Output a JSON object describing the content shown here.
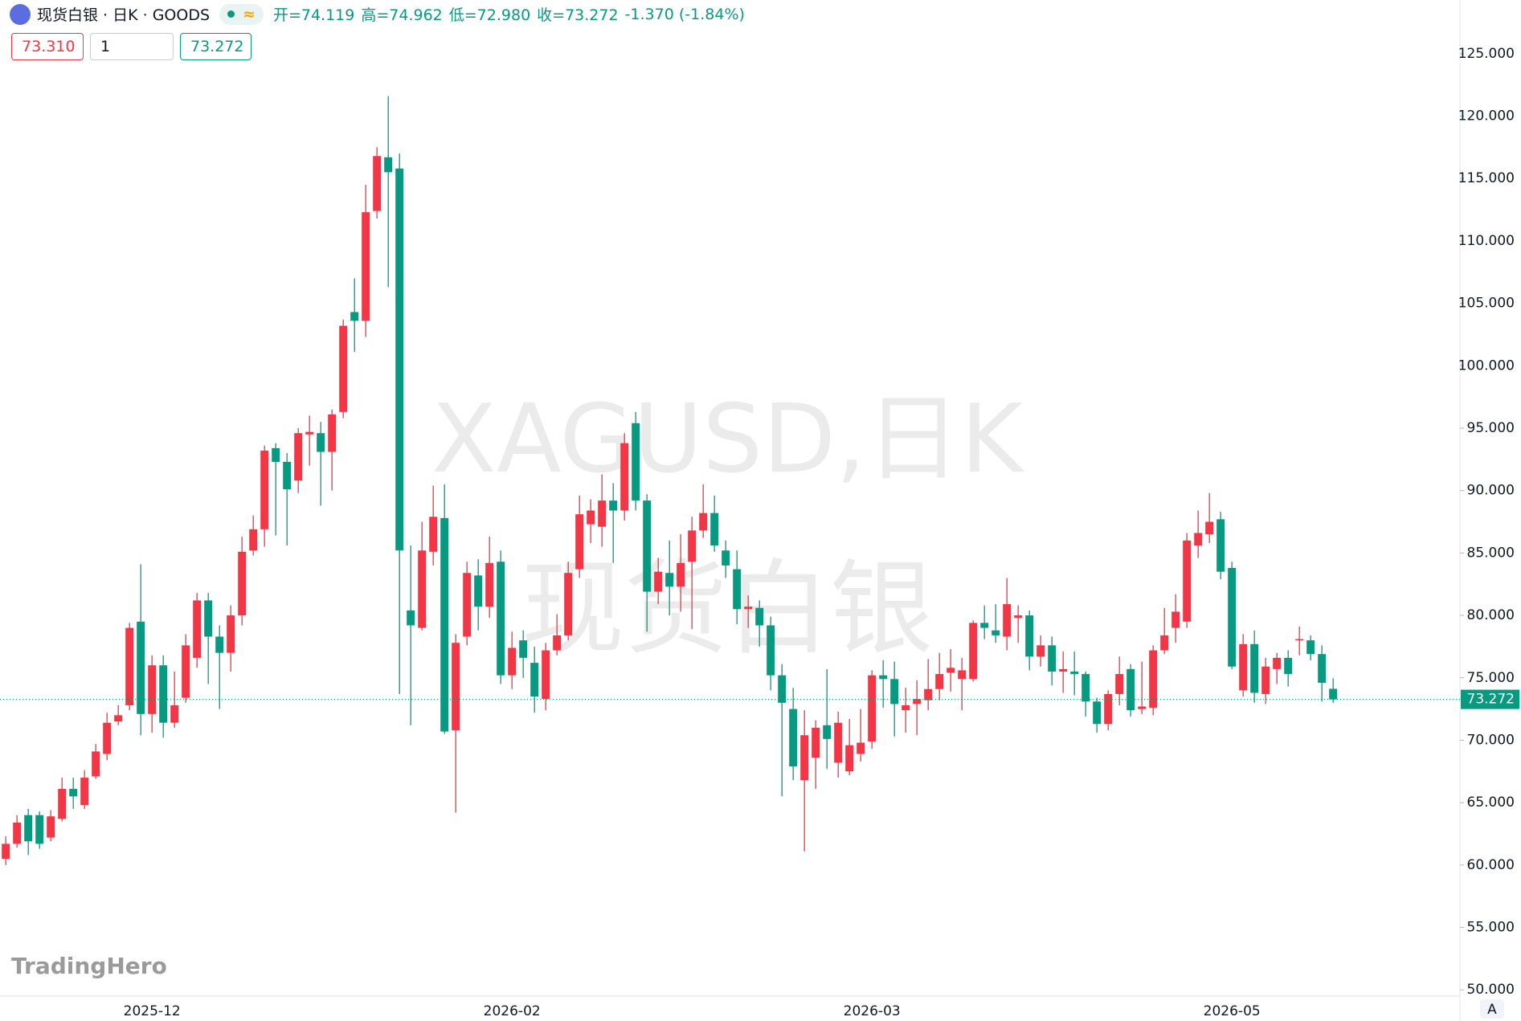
{
  "header": {
    "title": "现货白银 · 日K · GOODS",
    "ohlc": [
      "开=74.119",
      "高=74.962",
      "低=72.980",
      "收=73.272"
    ],
    "change": "-1.370 (-1.84%)",
    "inputs": [
      "73.310",
      "1",
      "73.272"
    ]
  },
  "chart_data": {
    "type": "candlestick",
    "watermark": [
      "XAGUSD,日K",
      "现货白银"
    ],
    "logo": "TradingHero",
    "axis_button": "A",
    "up_color": "#f23645",
    "down_color": "#089981",
    "categories": [
      null,
      null,
      null,
      null,
      null,
      null,
      null,
      null,
      null,
      null,
      null,
      null,
      null,
      "2025-12",
      null,
      null,
      null,
      null,
      null,
      null,
      null,
      null,
      null,
      null,
      null,
      null,
      null,
      null,
      null,
      null,
      null,
      null,
      null,
      null,
      null,
      null,
      null,
      null,
      null,
      null,
      null,
      null,
      null,
      null,
      null,
      "2026-02",
      null,
      null,
      null,
      null,
      null,
      null,
      null,
      null,
      null,
      null,
      null,
      null,
      null,
      null,
      null,
      null,
      null,
      null,
      null,
      null,
      null,
      null,
      null,
      null,
      null,
      null,
      null,
      null,
      null,
      null,
      null,
      "2026-03",
      null,
      null,
      null,
      null,
      null,
      null,
      null,
      null,
      null,
      null,
      null,
      null,
      null,
      null,
      null,
      null,
      null,
      null,
      null,
      null,
      null,
      null,
      null,
      null,
      null,
      null,
      null,
      null,
      null,
      null,
      null,
      "2026-05",
      null,
      null,
      null,
      null,
      null,
      null,
      null,
      null,
      null
    ],
    "open": [
      60.5,
      61.7,
      64.0,
      64.0,
      62.2,
      63.7,
      66.1,
      64.8,
      67.1,
      68.9,
      71.5,
      72.8,
      79.5,
      72.1,
      76.0,
      71.4,
      73.4,
      76.6,
      81.2,
      78.3,
      77.0,
      80.0,
      85.2,
      86.9,
      93.4,
      92.3,
      90.8,
      94.5,
      94.6,
      93.1,
      96.3,
      104.3,
      103.6,
      112.4,
      116.7,
      115.8,
      80.4,
      79.0,
      85.1,
      87.8,
      70.8,
      78.3,
      83.2,
      80.7,
      84.3,
      75.2,
      78.0,
      76.2,
      73.3,
      77.2,
      78.4,
      83.7,
      87.3,
      87.1,
      89.2,
      88.4,
      95.4,
      89.2,
      81.9,
      83.4,
      82.3,
      84.3,
      86.8,
      88.2,
      85.2,
      83.7,
      80.5,
      80.6,
      79.2,
      75.2,
      72.5,
      66.8,
      68.6,
      71.2,
      68.2,
      67.5,
      68.9,
      69.9,
      75.2,
      74.9,
      72.4,
      72.9,
      73.2,
      74.1,
      75.4,
      74.9,
      74.9,
      79.4,
      78.8,
      78.3,
      79.8,
      80.0,
      76.7,
      77.6,
      75.5,
      75.5,
      75.3,
      73.1,
      71.3,
      73.7,
      75.7,
      72.5,
      72.6,
      77.2,
      79.0,
      79.5,
      85.6,
      86.5,
      87.7,
      83.8,
      74.0,
      77.7,
      73.7,
      75.7,
      76.6,
      78.0,
      78.0,
      76.9,
      74.119
    ],
    "high": [
      62.3,
      64.0,
      64.5,
      64.3,
      64.4,
      67.0,
      67.0,
      67.6,
      69.7,
      72.2,
      72.8,
      79.4,
      84.1,
      76.8,
      76.8,
      75.5,
      78.5,
      81.8,
      81.8,
      79.2,
      80.8,
      86.3,
      88.0,
      93.6,
      93.8,
      93.0,
      95.0,
      96.0,
      95.5,
      96.5,
      103.7,
      107.0,
      114.5,
      117.5,
      121.6,
      117.0,
      85.6,
      87.5,
      90.4,
      90.5,
      78.5,
      84.3,
      84.5,
      86.3,
      85.2,
      78.7,
      78.8,
      77.5,
      77.8,
      80.1,
      84.3,
      89.6,
      89.3,
      91.3,
      90.6,
      94.6,
      96.3,
      89.7,
      84.6,
      86.0,
      86.5,
      87.9,
      90.5,
      89.6,
      86.0,
      85.2,
      81.6,
      81.2,
      79.9,
      76.1,
      74.2,
      72.4,
      71.6,
      75.7,
      72.3,
      71.7,
      72.5,
      75.6,
      76.4,
      76.3,
      74.2,
      74.8,
      76.5,
      77.0,
      77.3,
      76.6,
      79.6,
      80.8,
      80.9,
      83.0,
      80.8,
      80.4,
      78.4,
      78.3,
      77.1,
      77.1,
      75.5,
      73.4,
      74.0,
      76.7,
      76.1,
      76.3,
      77.6,
      80.6,
      81.7,
      86.6,
      88.4,
      89.8,
      88.3,
      84.3,
      78.5,
      78.8,
      76.6,
      77.0,
      77.2,
      79.1,
      78.4,
      77.6,
      74.962
    ],
    "low": [
      60.0,
      61.4,
      60.8,
      61.3,
      61.9,
      63.5,
      64.5,
      64.5,
      66.9,
      68.4,
      71.2,
      72.4,
      70.4,
      70.6,
      70.2,
      71.0,
      73.0,
      75.8,
      74.5,
      72.5,
      75.5,
      79.2,
      84.8,
      85.5,
      86.4,
      85.6,
      89.8,
      92.0,
      88.8,
      90.0,
      95.8,
      101.1,
      102.3,
      111.8,
      106.3,
      73.7,
      71.2,
      78.8,
      84.0,
      70.5,
      64.2,
      77.6,
      78.8,
      79.8,
      74.5,
      74.1,
      75.0,
      72.2,
      72.4,
      76.8,
      78.0,
      83.0,
      85.8,
      85.5,
      84.2,
      87.6,
      88.4,
      78.7,
      80.9,
      80.0,
      80.3,
      78.9,
      86.2,
      85.1,
      83.0,
      79.3,
      79.0,
      77.5,
      74.0,
      65.5,
      66.8,
      61.1,
      66.1,
      67.7,
      67.0,
      67.2,
      68.3,
      69.3,
      72.6,
      70.3,
      70.6,
      70.4,
      72.4,
      73.2,
      73.9,
      72.4,
      74.7,
      78.1,
      77.8,
      77.2,
      77.8,
      75.6,
      75.9,
      74.4,
      73.8,
      73.6,
      71.9,
      70.6,
      70.8,
      72.8,
      71.9,
      72.1,
      72.0,
      76.9,
      77.8,
      79.0,
      84.6,
      85.8,
      82.9,
      75.7,
      73.5,
      73.0,
      72.9,
      74.5,
      74.3,
      76.8,
      76.4,
      73.1,
      72.98
    ],
    "close": [
      61.7,
      63.4,
      61.9,
      61.7,
      63.9,
      66.1,
      65.5,
      67.0,
      69.1,
      71.4,
      72.0,
      79.0,
      72.1,
      76.0,
      71.4,
      72.8,
      77.6,
      81.2,
      78.3,
      77.0,
      80.0,
      85.1,
      86.9,
      93.2,
      92.3,
      90.1,
      94.6,
      94.7,
      93.1,
      96.1,
      103.2,
      103.6,
      112.3,
      116.8,
      115.5,
      85.2,
      79.2,
      85.2,
      87.9,
      70.7,
      77.8,
      83.4,
      80.7,
      84.2,
      75.2,
      77.4,
      76.6,
      73.5,
      77.2,
      78.4,
      83.4,
      88.1,
      88.4,
      89.2,
      88.4,
      93.8,
      89.2,
      81.9,
      83.5,
      82.3,
      84.2,
      86.8,
      88.2,
      85.6,
      84.0,
      80.5,
      80.7,
      79.2,
      75.2,
      73.0,
      67.9,
      70.4,
      71.0,
      70.1,
      71.4,
      69.6,
      69.8,
      75.2,
      74.9,
      72.9,
      72.8,
      73.3,
      74.1,
      75.3,
      75.8,
      75.6,
      79.4,
      79.0,
      78.4,
      80.9,
      80.0,
      76.7,
      77.6,
      75.5,
      75.7,
      75.3,
      73.1,
      71.3,
      73.7,
      75.3,
      72.4,
      72.7,
      77.2,
      78.4,
      80.3,
      86.0,
      86.6,
      87.5,
      83.5,
      75.9,
      77.7,
      73.8,
      75.9,
      76.6,
      75.3,
      78.1,
      76.9,
      74.6,
      73.272
    ],
    "ylim": [
      49.5,
      129.3
    ],
    "yticks": [
      {
        "value": 50,
        "label": "50.000"
      },
      {
        "value": 55,
        "label": "55.000"
      },
      {
        "value": 60,
        "label": "60.000"
      },
      {
        "value": 65,
        "label": "65.000"
      },
      {
        "value": 70,
        "label": "70.000"
      },
      {
        "value": 75,
        "label": "75.000"
      },
      {
        "value": 80,
        "label": "80.000"
      },
      {
        "value": 85,
        "label": "85.000"
      },
      {
        "value": 90,
        "label": "90.000"
      },
      {
        "value": 95,
        "label": "95.000"
      },
      {
        "value": 100,
        "label": "100.000"
      },
      {
        "value": 105,
        "label": "105.000"
      },
      {
        "value": 110,
        "label": "110.000"
      },
      {
        "value": 115,
        "label": "115.000"
      },
      {
        "value": 120,
        "label": "120.000"
      },
      {
        "value": 125,
        "label": "125.000"
      }
    ],
    "last_price": {
      "value": 73.272,
      "label": "73.272"
    },
    "grid": false
  }
}
